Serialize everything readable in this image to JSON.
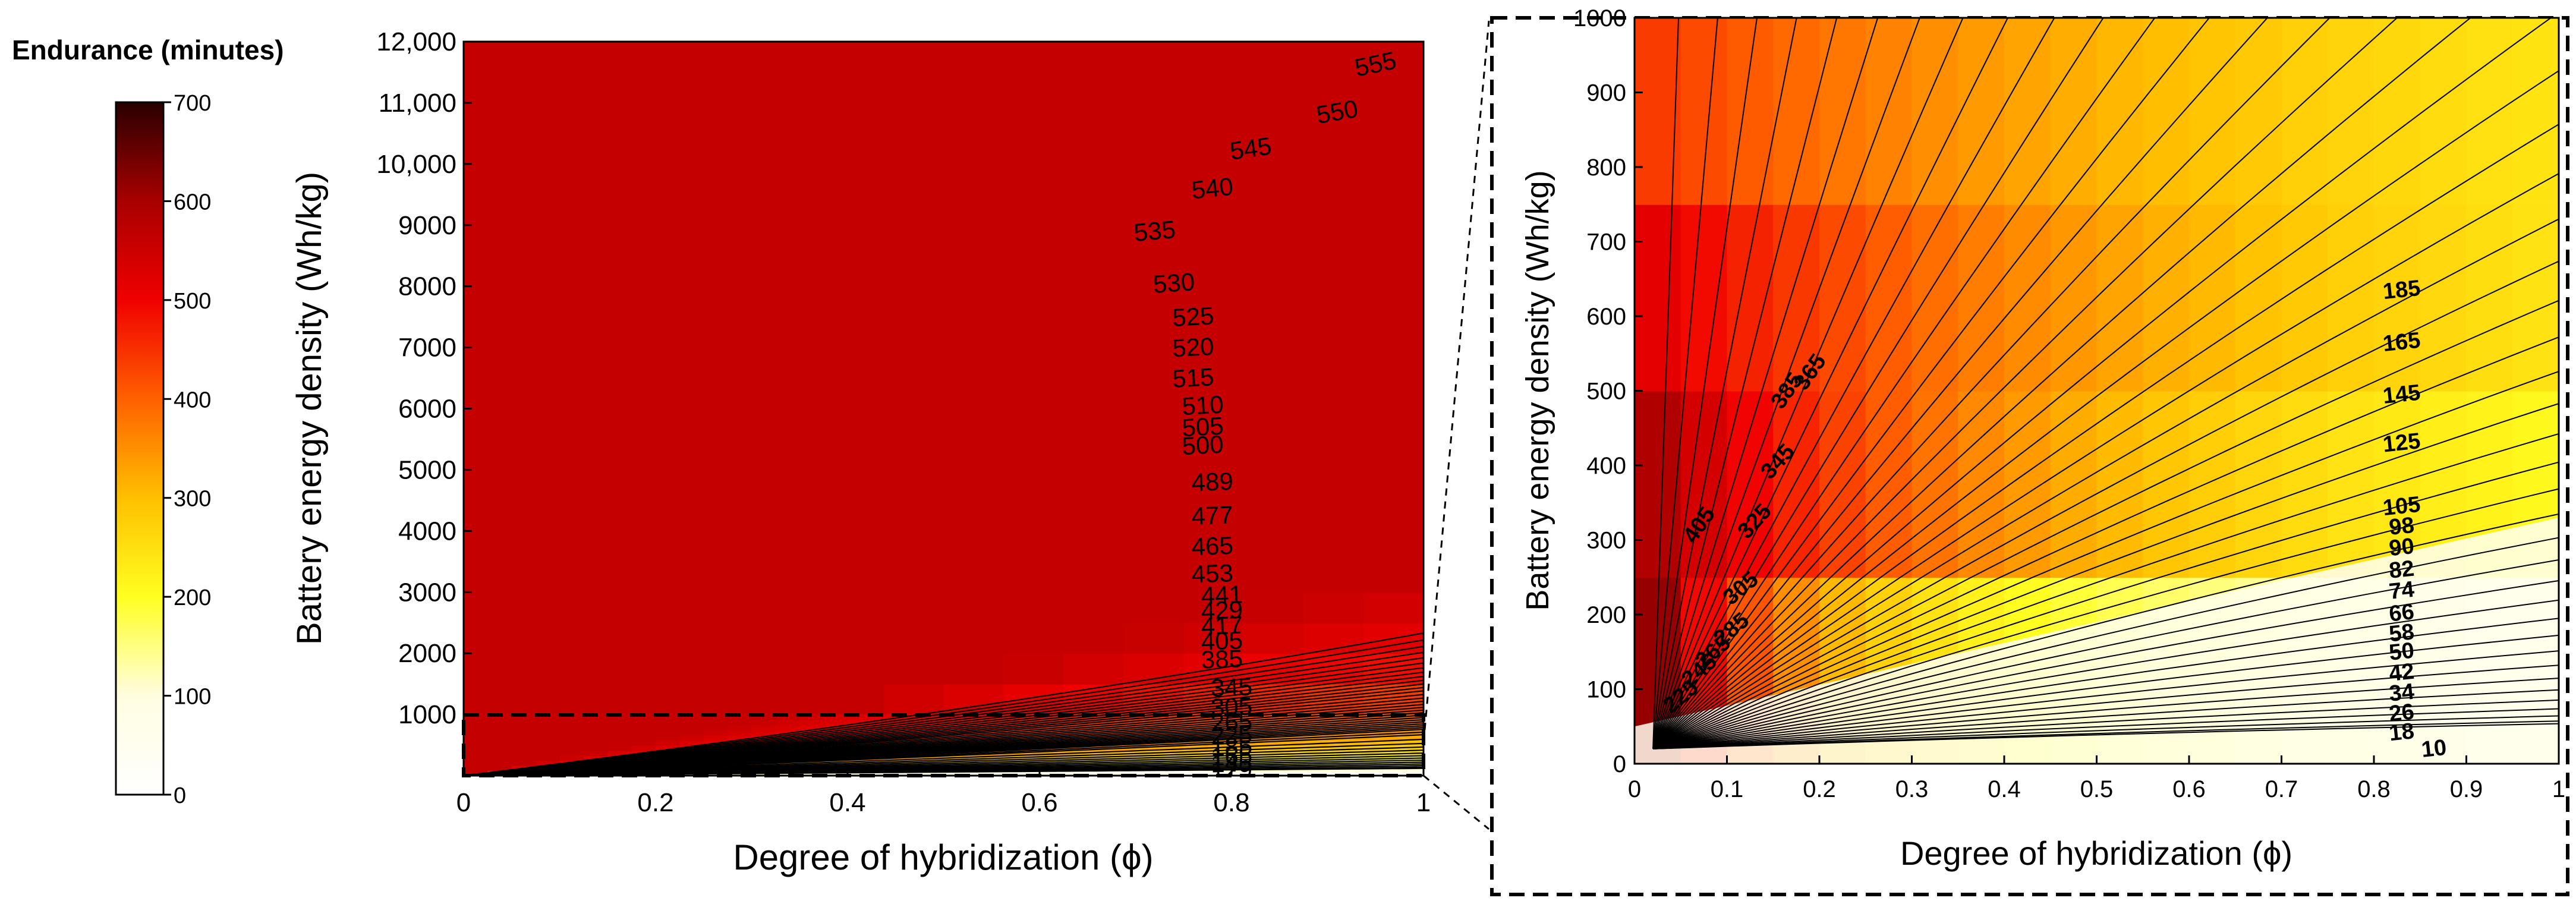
{
  "colorbar": {
    "title": "Endurance (minutes)",
    "range": [
      0,
      700
    ],
    "ticks": [
      "0",
      "100",
      "200",
      "300",
      "400",
      "500",
      "600",
      "700"
    ],
    "colors": [
      "#ffffff",
      "#fffde0",
      "#ffff20",
      "#ffc000",
      "#ff6000",
      "#f00000",
      "#a80000",
      "#2a0000"
    ]
  },
  "chart_data": [
    {
      "type": "heatmap",
      "title": "",
      "xlabel": "Degree of hybridization (ϕ)",
      "ylabel": "Battery energy density (Wh/kg)",
      "xlim": [
        0,
        1
      ],
      "ylim": [
        0,
        12000
      ],
      "xticks": [
        "0",
        "0.2",
        "0.4",
        "0.6",
        "0.8",
        "1"
      ],
      "yticks": [
        "1000",
        "2000",
        "3000",
        "4000",
        "5000",
        "6000",
        "7000",
        "8000",
        "9000",
        "10,000",
        "11,000",
        "12,000"
      ],
      "contour_labels": [
        {
          "text": "555",
          "x": 0.95,
          "y": 11630,
          "angle": 12
        },
        {
          "text": "550",
          "x": 0.91,
          "y": 10850,
          "angle": 10
        },
        {
          "text": "545",
          "x": 0.82,
          "y": 10250,
          "angle": 8
        },
        {
          "text": "540",
          "x": 0.78,
          "y": 9600,
          "angle": 6
        },
        {
          "text": "535",
          "x": 0.72,
          "y": 8900,
          "angle": 5
        },
        {
          "text": "530",
          "x": 0.74,
          "y": 8050,
          "angle": 4
        },
        {
          "text": "525",
          "x": 0.76,
          "y": 7500,
          "angle": 3
        },
        {
          "text": "520",
          "x": 0.76,
          "y": 7000,
          "angle": 3
        },
        {
          "text": "515",
          "x": 0.76,
          "y": 6500,
          "angle": 3
        },
        {
          "text": "510",
          "x": 0.77,
          "y": 6050,
          "angle": 3
        },
        {
          "text": "505",
          "x": 0.77,
          "y": 5700,
          "angle": 3
        },
        {
          "text": "500",
          "x": 0.77,
          "y": 5400,
          "angle": 3
        },
        {
          "text": "489",
          "x": 0.78,
          "y": 4800,
          "angle": 2
        },
        {
          "text": "477",
          "x": 0.78,
          "y": 4250,
          "angle": 2
        },
        {
          "text": "465",
          "x": 0.78,
          "y": 3750,
          "angle": 2
        },
        {
          "text": "453",
          "x": 0.78,
          "y": 3300,
          "angle": 2
        },
        {
          "text": "441",
          "x": 0.79,
          "y": 2950,
          "angle": 2
        },
        {
          "text": "429",
          "x": 0.79,
          "y": 2700,
          "angle": 2
        },
        {
          "text": "417",
          "x": 0.79,
          "y": 2450,
          "angle": 2
        },
        {
          "text": "405",
          "x": 0.79,
          "y": 2200,
          "angle": 2
        },
        {
          "text": "385",
          "x": 0.79,
          "y": 1900,
          "angle": 2
        },
        {
          "text": "345",
          "x": 0.8,
          "y": 1440,
          "angle": 2
        },
        {
          "text": "305",
          "x": 0.8,
          "y": 1120,
          "angle": 2
        },
        {
          "text": "265",
          "x": 0.8,
          "y": 870,
          "angle": 2
        },
        {
          "text": "225",
          "x": 0.8,
          "y": 660,
          "angle": 2
        },
        {
          "text": "185",
          "x": 0.8,
          "y": 470,
          "angle": 2
        },
        {
          "text": "165",
          "x": 0.8,
          "y": 320,
          "angle": 2
        },
        {
          "text": "145",
          "x": 0.8,
          "y": 200,
          "angle": 2
        },
        {
          "text": "129",
          "x": 0.8,
          "y": 90,
          "angle": 2
        }
      ],
      "zoom_region": {
        "xlim": [
          0,
          1
        ],
        "ylim": [
          0,
          1000
        ]
      }
    },
    {
      "type": "heatmap",
      "title": "",
      "xlabel": "Degree of hybridization (ϕ)",
      "ylabel": "Battery energy density (Wh/kg)",
      "xlim": [
        0,
        1
      ],
      "ylim": [
        0,
        1000
      ],
      "xticks": [
        "0",
        "0.1",
        "0.2",
        "0.3",
        "0.4",
        "0.5",
        "0.6",
        "0.7",
        "0.8",
        "0.9",
        "1"
      ],
      "yticks": [
        "0",
        "100",
        "200",
        "300",
        "400",
        "500",
        "600",
        "700",
        "800",
        "900",
        "1000"
      ],
      "contour_labels": [
        {
          "text": "385",
          "x": 0.165,
          "y": 500,
          "angle": -55
        },
        {
          "text": "365",
          "x": 0.19,
          "y": 525,
          "angle": -55
        },
        {
          "text": "345",
          "x": 0.155,
          "y": 405,
          "angle": -48
        },
        {
          "text": "325",
          "x": 0.13,
          "y": 325,
          "angle": -48
        },
        {
          "text": "405",
          "x": 0.07,
          "y": 320,
          "angle": -55
        },
        {
          "text": "305",
          "x": 0.115,
          "y": 235,
          "angle": -40
        },
        {
          "text": "285",
          "x": 0.105,
          "y": 180,
          "angle": -40
        },
        {
          "text": "265",
          "x": 0.085,
          "y": 150,
          "angle": -40
        },
        {
          "text": "245",
          "x": 0.07,
          "y": 125,
          "angle": -40
        },
        {
          "text": "225",
          "x": 0.05,
          "y": 90,
          "angle": -40
        },
        {
          "text": "185",
          "x": 0.83,
          "y": 635,
          "angle": -6
        },
        {
          "text": "165",
          "x": 0.83,
          "y": 565,
          "angle": -6
        },
        {
          "text": "145",
          "x": 0.83,
          "y": 495,
          "angle": -6
        },
        {
          "text": "125",
          "x": 0.83,
          "y": 430,
          "angle": -6
        },
        {
          "text": "105",
          "x": 0.83,
          "y": 345,
          "angle": -6
        },
        {
          "text": "98",
          "x": 0.83,
          "y": 318,
          "angle": -6
        },
        {
          "text": "90",
          "x": 0.83,
          "y": 290,
          "angle": -6
        },
        {
          "text": "82",
          "x": 0.83,
          "y": 260,
          "angle": -6
        },
        {
          "text": "74",
          "x": 0.83,
          "y": 232,
          "angle": -6
        },
        {
          "text": "66",
          "x": 0.83,
          "y": 202,
          "angle": -6
        },
        {
          "text": "58",
          "x": 0.83,
          "y": 175,
          "angle": -6
        },
        {
          "text": "50",
          "x": 0.83,
          "y": 150,
          "angle": -6
        },
        {
          "text": "42",
          "x": 0.83,
          "y": 122,
          "angle": -6
        },
        {
          "text": "34",
          "x": 0.83,
          "y": 95,
          "angle": -6
        },
        {
          "text": "26",
          "x": 0.83,
          "y": 68,
          "angle": -6
        },
        {
          "text": "18",
          "x": 0.83,
          "y": 42,
          "angle": -6
        },
        {
          "text": "10",
          "x": 0.865,
          "y": 20,
          "angle": -6
        }
      ]
    }
  ]
}
